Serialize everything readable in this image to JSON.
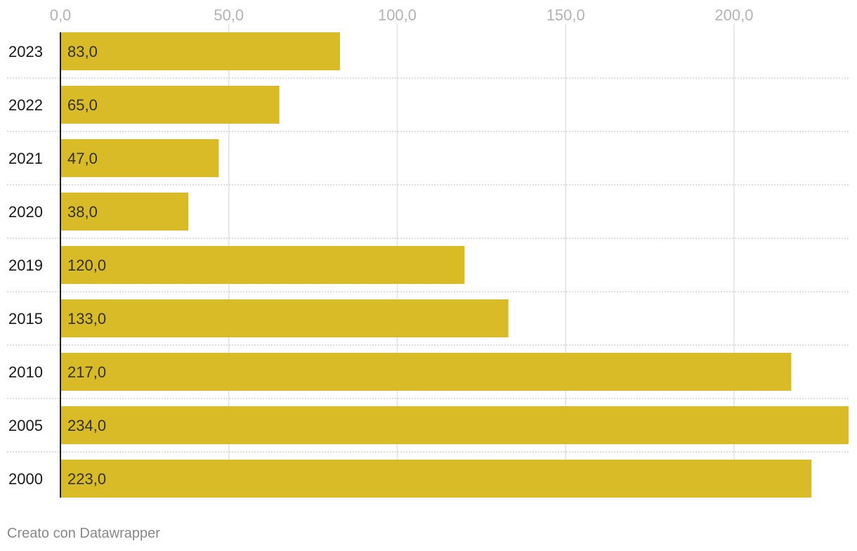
{
  "chart_data": {
    "type": "bar",
    "orientation": "horizontal",
    "categories": [
      "2023",
      "2022",
      "2021",
      "2020",
      "2019",
      "2015",
      "2010",
      "2005",
      "2000"
    ],
    "values": [
      83,
      65,
      47,
      38,
      120,
      133,
      217,
      234,
      223
    ],
    "value_labels": [
      "83,0",
      "65,0",
      "47,0",
      "38,0",
      "120,0",
      "133,0",
      "217,0",
      "234,0",
      "223,0"
    ],
    "xticks": [
      0,
      50,
      100,
      150,
      200
    ],
    "xtick_labels": [
      "0,0",
      "50,0",
      "100,0",
      "150,0",
      "200,0"
    ],
    "xlim": [
      0,
      234
    ],
    "bar_color": "#d8bb27",
    "grid": true,
    "title": "",
    "xlabel": "",
    "ylabel": ""
  },
  "footer": {
    "credit": "Creato con Datawrapper"
  }
}
